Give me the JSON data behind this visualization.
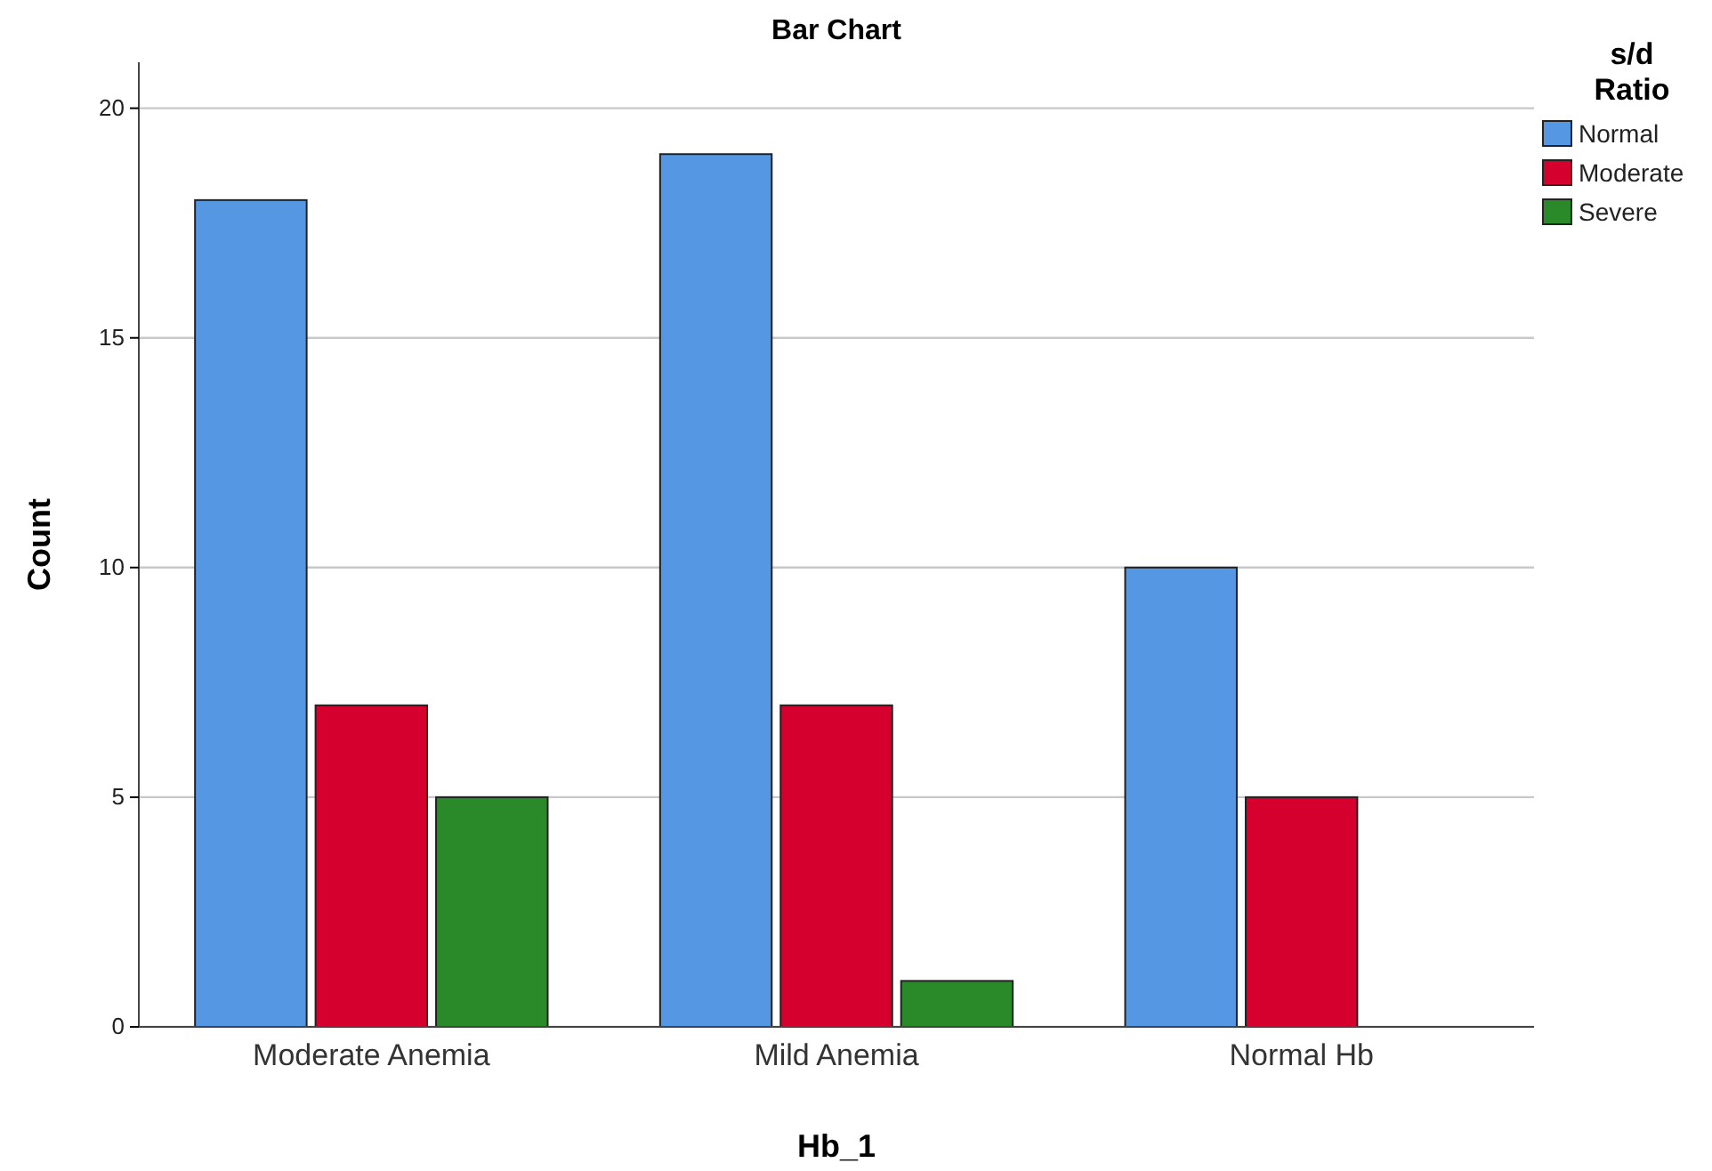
{
  "chart_data": {
    "type": "bar",
    "title": "Bar Chart",
    "xlabel": "Hb_1",
    "ylabel": "Count",
    "legend_title": "s/d Ratio",
    "categories": [
      "Moderate Anemia",
      "Mild Anemia",
      "Normal Hb"
    ],
    "series": [
      {
        "name": "Normal",
        "color": "#5597e3",
        "values": [
          18,
          19,
          10
        ]
      },
      {
        "name": "Moderate",
        "color": "#d6002e",
        "values": [
          7,
          7,
          5
        ]
      },
      {
        "name": "Severe",
        "color": "#2a8a2a",
        "values": [
          5,
          1,
          null
        ]
      }
    ],
    "ylim": [
      0,
      21
    ],
    "yticks": [
      0,
      5,
      10,
      15,
      20
    ],
    "grid": "y",
    "legend": "top right"
  }
}
